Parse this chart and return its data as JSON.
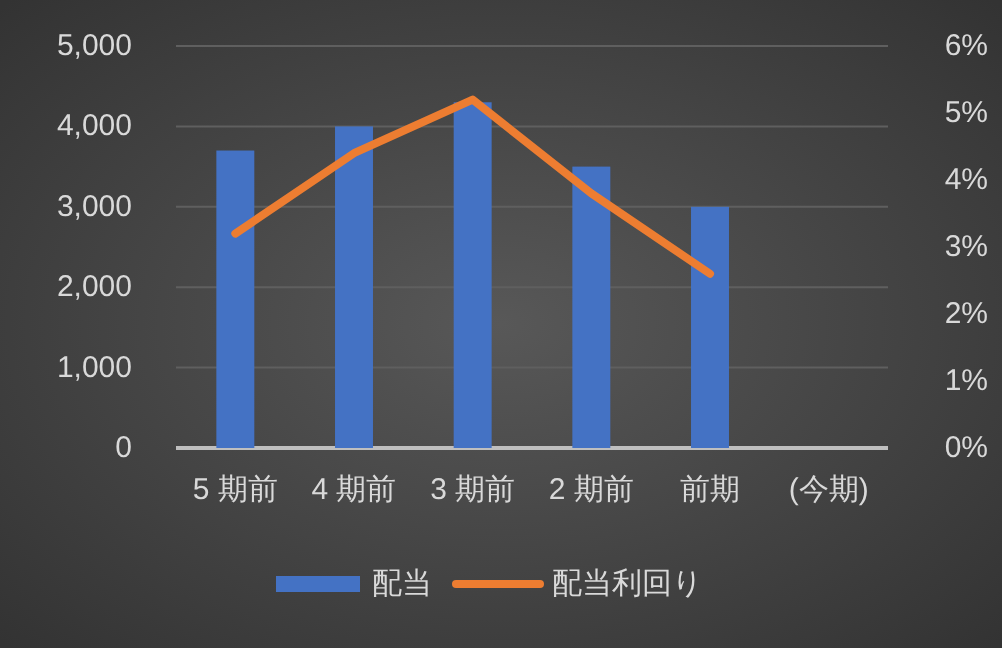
{
  "chart_data": {
    "type": "bar",
    "categories": [
      "5 期前",
      "4 期前",
      "3 期前",
      "2 期前",
      "前期",
      "(今期)"
    ],
    "series": [
      {
        "name": "配当",
        "color": "#4472c4",
        "values": [
          3700,
          4000,
          4300,
          3500,
          3000,
          null
        ]
      },
      {
        "name": "配当利回り",
        "type": "line",
        "axis": "y2",
        "color": "#ed7d31",
        "values": [
          3.2,
          4.4,
          5.2,
          3.8,
          2.6,
          null
        ]
      }
    ],
    "ylim": [
      0,
      5000
    ],
    "yticks": [
      {
        "value": 0,
        "label": "0"
      },
      {
        "value": 1000,
        "label": "1,000"
      },
      {
        "value": 2000,
        "label": "2,000"
      },
      {
        "value": 3000,
        "label": "3,000"
      },
      {
        "value": 4000,
        "label": "4,000"
      },
      {
        "value": 5000,
        "label": "5,000"
      }
    ],
    "y2lim": [
      0,
      6
    ],
    "y2ticks": [
      {
        "value": 0,
        "label": "0%"
      },
      {
        "value": 1,
        "label": "1%"
      },
      {
        "value": 2,
        "label": "2%"
      },
      {
        "value": 3,
        "label": "3%"
      },
      {
        "value": 4,
        "label": "4%"
      },
      {
        "value": 5,
        "label": "5%"
      },
      {
        "value": 6,
        "label": "6%"
      }
    ],
    "grid": "y",
    "legend": "bottom",
    "marker": "none"
  }
}
